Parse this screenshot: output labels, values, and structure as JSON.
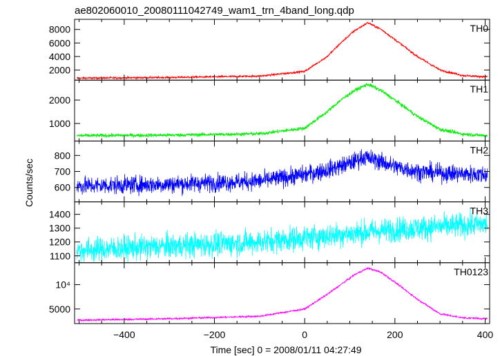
{
  "title": "ae802060010_20080111042749_wam1_trn_4band_long.qdp",
  "xlabel": "Time [sec] 0 = 2008/01/11 04:27:49",
  "ylabel": "Counts/sec",
  "chart_data": {
    "type": "line",
    "layout": "stacked-panels-shared-x",
    "xlim": [
      -510,
      410
    ],
    "x_ticks": [
      {
        "value": -400,
        "label": "−400"
      },
      {
        "value": -200,
        "label": "−200"
      },
      {
        "value": 0,
        "label": "0"
      },
      {
        "value": 200,
        "label": "200"
      },
      {
        "value": 400,
        "label": "400"
      }
    ],
    "panels": [
      {
        "name": "TH0",
        "color": "#ff0000",
        "ylim": [
          500,
          9500
        ],
        "y_ticks": [
          {
            "value": 2000,
            "label": "2000"
          },
          {
            "value": 4000,
            "label": "4000"
          },
          {
            "value": 6000,
            "label": "6000"
          },
          {
            "value": 8000,
            "label": "8000"
          }
        ],
        "noise": 80,
        "profile": [
          [
            -500,
            800
          ],
          [
            -300,
            900
          ],
          [
            -100,
            1100
          ],
          [
            0,
            1800
          ],
          [
            50,
            4000
          ],
          [
            80,
            6000
          ],
          [
            110,
            7800
          ],
          [
            140,
            9000
          ],
          [
            170,
            8000
          ],
          [
            200,
            6500
          ],
          [
            250,
            4000
          ],
          [
            300,
            2000
          ],
          [
            350,
            1200
          ],
          [
            400,
            1000
          ]
        ]
      },
      {
        "name": "TH1",
        "color": "#00ee00",
        "ylim": [
          250,
          2850
        ],
        "y_ticks": [
          {
            "value": 1000,
            "label": "1000"
          },
          {
            "value": 2000,
            "label": "2000"
          }
        ],
        "noise": 40,
        "profile": [
          [
            -500,
            480
          ],
          [
            -300,
            500
          ],
          [
            -100,
            560
          ],
          [
            0,
            800
          ],
          [
            50,
            1500
          ],
          [
            80,
            2000
          ],
          [
            110,
            2400
          ],
          [
            140,
            2680
          ],
          [
            170,
            2400
          ],
          [
            200,
            2000
          ],
          [
            250,
            1300
          ],
          [
            300,
            750
          ],
          [
            350,
            550
          ],
          [
            400,
            480
          ]
        ]
      },
      {
        "name": "TH2",
        "color": "#0000ff",
        "ylim": [
          510,
          890
        ],
        "y_ticks": [
          {
            "value": 600,
            "label": "600"
          },
          {
            "value": 700,
            "label": "700"
          },
          {
            "value": 800,
            "label": "800"
          }
        ],
        "noise": 28,
        "profile": [
          [
            -500,
            610
          ],
          [
            -300,
            620
          ],
          [
            -100,
            640
          ],
          [
            0,
            680
          ],
          [
            50,
            710
          ],
          [
            100,
            750
          ],
          [
            130,
            790
          ],
          [
            160,
            770
          ],
          [
            200,
            730
          ],
          [
            250,
            700
          ],
          [
            300,
            690
          ],
          [
            400,
            680
          ]
        ]
      },
      {
        "name": "TH3",
        "color": "#00ffff",
        "ylim": [
          1050,
          1490
        ],
        "y_ticks": [
          {
            "value": 1100,
            "label": "1100"
          },
          {
            "value": 1200,
            "label": "1200"
          },
          {
            "value": 1300,
            "label": "1300"
          },
          {
            "value": 1400,
            "label": "1400"
          }
        ],
        "noise": 45,
        "profile": [
          [
            -500,
            1140
          ],
          [
            -300,
            1170
          ],
          [
            -100,
            1200
          ],
          [
            0,
            1230
          ],
          [
            100,
            1260
          ],
          [
            200,
            1290
          ],
          [
            300,
            1310
          ],
          [
            400,
            1330
          ]
        ]
      },
      {
        "name": "TH0123",
        "color": "#ff00ff",
        "ylim": [
          2000,
          14500
        ],
        "y_ticks": [
          {
            "value": 5000,
            "label": "5000"
          },
          {
            "value": 10000,
            "label": "10⁴"
          }
        ],
        "noise": 100,
        "profile": [
          [
            -500,
            2700
          ],
          [
            -300,
            3000
          ],
          [
            -100,
            3500
          ],
          [
            0,
            5000
          ],
          [
            50,
            8000
          ],
          [
            80,
            10000
          ],
          [
            110,
            12000
          ],
          [
            140,
            13400
          ],
          [
            170,
            12500
          ],
          [
            200,
            10500
          ],
          [
            250,
            7000
          ],
          [
            300,
            4000
          ],
          [
            350,
            3200
          ],
          [
            400,
            3000
          ]
        ]
      }
    ]
  }
}
